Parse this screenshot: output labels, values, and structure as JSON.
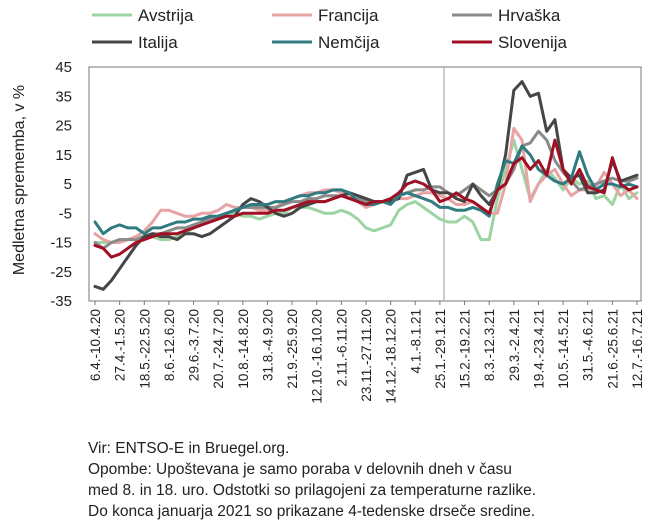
{
  "chart_data": {
    "type": "line",
    "title": "",
    "ylabel": "Medletna sprememba, v %",
    "xlabel": "",
    "ylim": [
      -35,
      45
    ],
    "yticks": [
      -35,
      -25,
      -15,
      -5,
      5,
      15,
      25,
      35,
      45
    ],
    "grid": false,
    "legend_position": "top",
    "categories": [
      "6.4.-10.4.20",
      "13.4.-17.4.20",
      "20.4.-24.4.20",
      "27.4.-1.5.20",
      "4.5.-8.5.20",
      "11.5.-15.5.20",
      "18.5.-22.5.20",
      "25.5.-29.5.20",
      "1.6.-5.6.20",
      "8.6.-12.6.20",
      "15.6.-19.6.20",
      "22.6.-26.6.20",
      "29.6.-3.7.20",
      "6.7.-10.7.20",
      "13.7.-17.7.20",
      "20.7.-24.7.20",
      "27.7.-31.7.20",
      "3.8.-7.8.20",
      "10.8.-14.8.20",
      "17.8.-21.8.20",
      "24.8.-28.8.20",
      "31.8.-4.9.20",
      "7.9.-11.9.20",
      "14.9.-18.9.20",
      "21.9.-25.9.20",
      "28.9.-2.10.20",
      "5.10.-9.10.20",
      "12.10.-16.10.20",
      "19.10.-23.10.20",
      "26.10.-30.10.20",
      "2.11.-6.11.20",
      "9.11.-13.11.20",
      "16.11.-20.11.20",
      "23.11.-27.11.20",
      "30.11.-4.12.20",
      "7.12.-11.12.20",
      "14.12.-18.12.20",
      "21.12.-25.12.20",
      "28.12.-1.1.21",
      "4.1.-8.1.21",
      "11.1.-15.1.21",
      "18.1.-22.1.21",
      "25.1.-29.1.21",
      "1.2.-5.2.21",
      "8.2.-12.2.21",
      "15.2.-19.2.21",
      "22.2.-26.2.21",
      "1.3.-5.3.21",
      "8.3.-12.3.21",
      "15.3.-19.3.21",
      "22.3.-26.3.21",
      "29.3.-2.4.21",
      "5.4.-9.4.21",
      "12.4.-16.4.21",
      "19.4.-23.4.21",
      "26.4.-30.4.21",
      "3.5.-7.5.21",
      "10.5.-14.5.21",
      "17.5.-21.5.21",
      "24.5.-28.5.21",
      "31.5.-4.6.21",
      "7.6.-11.6.21",
      "14.6.-18.6.21",
      "21.6.-25.6.21",
      "28.6.-2.7.21",
      "5.7.-9.7.21",
      "12.7.-16.7.21"
    ],
    "tick_labels": [
      "6.4.-10.4.20",
      "27.4.-1.5.20",
      "18.5.-22.5.20",
      "8.6.-12.6.20",
      "29.6.-3.7.20",
      "20.7.-24.7.20",
      "10.8.-14.8.20",
      "31.8.-4.9.20",
      "21.9.-25.9.20",
      "12.10.-16.10.20",
      "2.11.-6.11.20",
      "23.11.-27.11.20",
      "14.12.-18.12.20",
      "4.1.-8.1.21",
      "25.1.-29.1.21",
      "15.2.-19.2.21",
      "8.3.-12.3.21",
      "29.3.-2.4.21",
      "19.4.-23.4.21",
      "10.5.-14.5.21",
      "31.5.-4.6.21",
      "21.6.-25.6.21",
      "12.7.-16.7.21"
    ],
    "divider_after": "25.1.-29.1.21",
    "series": [
      {
        "name": "Avstrija",
        "color": "#9dd4a4",
        "values": [
          -15,
          -15,
          -15,
          -14,
          -14,
          -13,
          -13,
          -13,
          -14,
          -14,
          -13,
          -12,
          -10,
          -9,
          -7,
          -6,
          -5,
          -5,
          -6,
          -6,
          -7,
          -6,
          -5,
          -5,
          -3,
          -3,
          -3,
          -4,
          -5,
          -5,
          -4,
          -5,
          -7,
          -10,
          -11,
          -10,
          -9,
          -4,
          -2,
          -1,
          -3,
          -5,
          -7,
          -8,
          -8,
          -6,
          -8,
          -14,
          -14,
          0,
          10,
          20,
          10,
          0,
          5,
          10,
          7,
          3,
          7,
          5,
          6,
          0,
          1,
          -2,
          5,
          0,
          2
        ]
      },
      {
        "name": "Francija",
        "color": "#e8a4a4",
        "values": [
          -12,
          -14,
          -15,
          -15,
          -14,
          -13,
          -11,
          -8,
          -4,
          -4,
          -5,
          -6,
          -6,
          -5,
          -5,
          -4,
          -2,
          -3,
          -3,
          -3,
          -4,
          -4,
          -3,
          -1,
          0,
          1,
          2,
          2,
          3,
          3,
          2,
          1,
          -1,
          -3,
          -2,
          -1,
          0,
          0,
          0,
          1,
          2,
          2,
          1,
          0,
          -2,
          -2,
          -1,
          -3,
          -5,
          -5,
          5,
          24,
          20,
          -1,
          5,
          8,
          10,
          5,
          1,
          3,
          3,
          4,
          9,
          5,
          1,
          3,
          0
        ]
      },
      {
        "name": "Hrvaška",
        "color": "#8a8a8a",
        "values": [
          -15,
          -17,
          -15,
          -14,
          -14,
          -14,
          -13,
          -12,
          -12,
          -11,
          -10,
          -10,
          -9,
          -8,
          -7,
          -6,
          -5,
          -4,
          -3,
          -3,
          -3,
          -3,
          -3,
          -2,
          -1,
          -1,
          0,
          0,
          1,
          1,
          1,
          0,
          0,
          -1,
          -1,
          -1,
          0,
          1,
          2,
          3,
          3,
          4,
          4,
          2,
          1,
          3,
          5,
          3,
          1,
          3,
          5,
          10,
          18,
          19,
          23,
          20,
          13,
          9,
          6,
          3,
          4,
          5,
          6,
          7,
          6,
          6,
          7
        ]
      },
      {
        "name": "Italija",
        "color": "#454545",
        "values": [
          -30,
          -31,
          -28,
          -24,
          -20,
          -16,
          -13,
          -12,
          -13,
          -13,
          -14,
          -12,
          -12,
          -13,
          -12,
          -10,
          -8,
          -6,
          -2,
          0,
          -1,
          -3,
          -5,
          -6,
          -5,
          -3,
          -2,
          -1,
          -1,
          0,
          1,
          2,
          1,
          0,
          -1,
          -1,
          -1,
          0,
          8,
          9,
          10,
          3,
          2,
          2,
          0,
          -1,
          5,
          1,
          -2,
          3,
          15,
          37,
          40,
          35,
          36,
          23,
          27,
          10,
          7,
          8,
          2,
          2,
          3,
          13,
          6,
          7,
          8
        ]
      },
      {
        "name": "Nemčija",
        "color": "#2f7b80",
        "values": [
          -8,
          -12,
          -10,
          -9,
          -10,
          -10,
          -12,
          -10,
          -10,
          -9,
          -8,
          -8,
          -7,
          -7,
          -6,
          -6,
          -5,
          -4,
          -3,
          -2,
          -2,
          -2,
          -1,
          -1,
          0,
          1,
          1,
          2,
          2,
          3,
          3,
          2,
          -1,
          -2,
          -2,
          -1,
          -2,
          1,
          2,
          1,
          0,
          -1,
          -3,
          -3,
          -4,
          -4,
          -3,
          -4,
          -6,
          5,
          13,
          12,
          18,
          15,
          10,
          8,
          6,
          5,
          7,
          16,
          8,
          3,
          5,
          5,
          4,
          5,
          4
        ]
      },
      {
        "name": "Slovenija",
        "color": "#a01025",
        "values": [
          -16,
          -17,
          -20,
          -19,
          -17,
          -15,
          -14,
          -13,
          -12,
          -12,
          -12,
          -11,
          -10,
          -9,
          -8,
          -7,
          -6,
          -6,
          -5,
          -5,
          -5,
          -5,
          -4,
          -4,
          -3,
          -2,
          -1,
          -1,
          -1,
          0,
          1,
          0,
          -1,
          -2,
          -1,
          -1,
          0,
          2,
          5,
          6,
          5,
          3,
          -1,
          0,
          2,
          0,
          -1,
          -3,
          -5,
          3,
          5,
          12,
          14,
          10,
          13,
          8,
          20,
          10,
          5,
          10,
          4,
          3,
          2,
          14,
          5,
          3,
          4
        ]
      }
    ]
  },
  "notes": {
    "line1": "Vir: ENTSO-E in Bruegel.org.",
    "line2": "Opombe: Upoštevana je samo poraba v delovnih dneh v času",
    "line3": "med 8. in 18. uro. Odstotki so prilagojeni za temperaturne razlike.",
    "line4": "Do konca januarja 2021 so prikazane 4-tedenske drseče sredine."
  }
}
